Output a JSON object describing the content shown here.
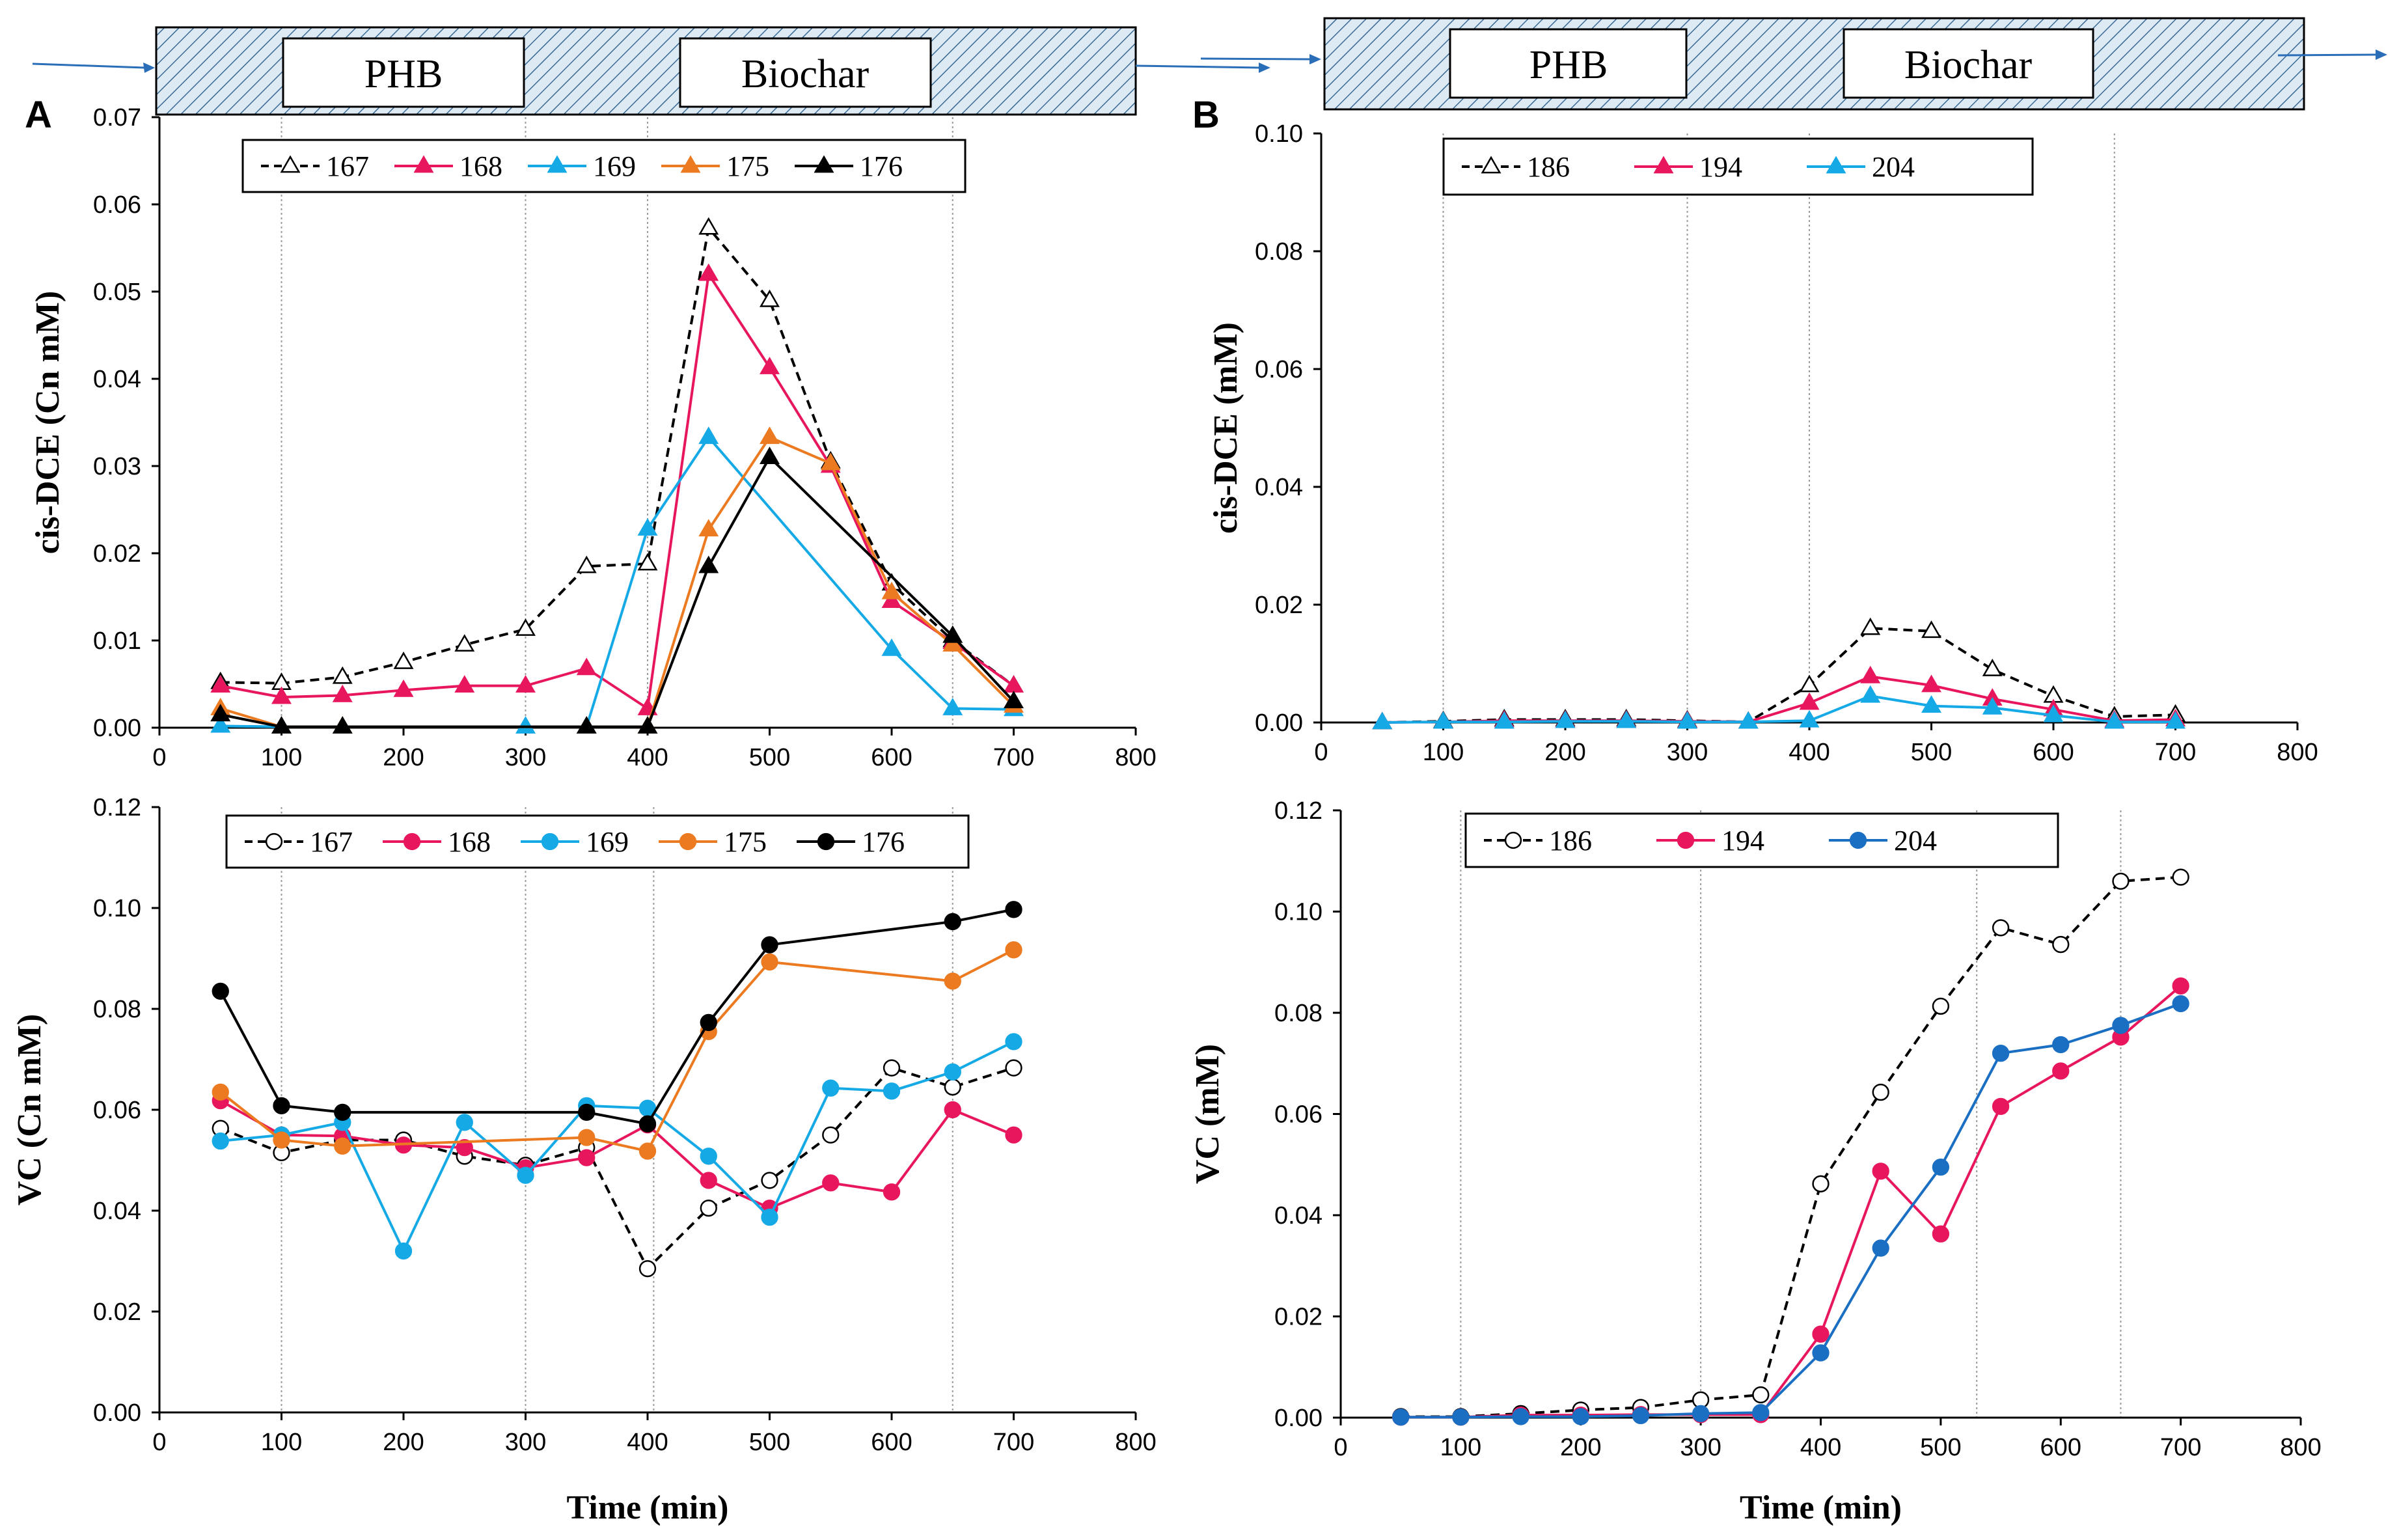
{
  "figure": {
    "panel_labels": [
      "A",
      "B"
    ],
    "banner": {
      "left_label": "PHB",
      "right_label": "Biochar"
    }
  },
  "chart_data": [
    {
      "id": "A-top",
      "type": "line",
      "ylabel": "cis-DCE (Cn mM)",
      "xlabel": "",
      "xlim": [
        0,
        800
      ],
      "ylim": [
        0,
        0.07
      ],
      "xticks": [
        0,
        100,
        200,
        300,
        400,
        500,
        600,
        700,
        800
      ],
      "yticks": [
        0,
        0.01,
        0.02,
        0.03,
        0.04,
        0.05,
        0.06,
        0.07
      ],
      "ytick_labels": [
        "0.00",
        "0.01",
        "0.02",
        "0.03",
        "0.04",
        "0.05",
        "0.06",
        "0.07"
      ],
      "vlines": [
        100,
        300,
        400,
        650
      ],
      "series": [
        {
          "name": "167",
          "color": "#000000",
          "marker": "triangle",
          "filled": false,
          "dashed": true,
          "x": [
            50,
            100,
            150,
            200,
            250,
            300,
            350,
            400,
            450,
            500,
            550,
            600,
            650,
            700
          ],
          "y": [
            0.0052,
            0.0051,
            0.0058,
            0.0075,
            0.0095,
            0.0113,
            0.0185,
            0.0188,
            0.0573,
            0.049,
            0.0305,
            0.0165,
            0.01,
            0.0048
          ]
        },
        {
          "name": "168",
          "color": "#e8175d",
          "marker": "triangle",
          "filled": true,
          "dashed": false,
          "x": [
            50,
            100,
            150,
            200,
            250,
            300,
            350,
            400,
            450,
            500,
            550,
            600,
            650,
            700
          ],
          "y": [
            0.0048,
            0.0035,
            0.0037,
            0.0043,
            0.0048,
            0.0048,
            0.0068,
            0.0022,
            0.052,
            0.0413,
            0.03,
            0.0145,
            0.0098,
            0.0048
          ]
        },
        {
          "name": "169",
          "color": "#15a9e6",
          "marker": "triangle",
          "filled": true,
          "dashed": false,
          "x": [
            50,
            100,
            300,
            350,
            400,
            450,
            600,
            650,
            700
          ],
          "y": [
            0.0002,
            0.0001,
            0.0001,
            0.0001,
            0.0228,
            0.0333,
            0.009,
            0.0022,
            0.0021
          ]
        },
        {
          "name": "175",
          "color": "#ec7a21",
          "marker": "triangle",
          "filled": true,
          "dashed": false,
          "x": [
            50,
            100,
            150,
            350,
            400,
            450,
            500,
            550,
            600,
            650,
            700
          ],
          "y": [
            0.0022,
            0.0001,
            0.0001,
            0.0001,
            0.0001,
            0.0227,
            0.0333,
            0.0303,
            0.0155,
            0.0095,
            0.0025
          ]
        },
        {
          "name": "176",
          "color": "#000000",
          "marker": "triangle",
          "filled": true,
          "dashed": false,
          "x": [
            50,
            100,
            150,
            350,
            400,
            450,
            500,
            650,
            700
          ],
          "y": [
            0.0015,
            0.0001,
            0.0001,
            0.0001,
            0.0001,
            0.0185,
            0.031,
            0.0105,
            0.003
          ]
        }
      ]
    },
    {
      "id": "A-bottom",
      "type": "line",
      "ylabel": "VC (Cn mM)",
      "xlabel": "Time (min)",
      "xlim": [
        0,
        800
      ],
      "ylim": [
        0,
        0.12
      ],
      "xticks": [
        0,
        100,
        200,
        300,
        400,
        500,
        600,
        700,
        800
      ],
      "yticks": [
        0,
        0.02,
        0.04,
        0.06,
        0.08,
        0.1,
        0.12
      ],
      "ytick_labels": [
        "0.00",
        "0.02",
        "0.04",
        "0.06",
        "0.08",
        "0.10",
        "0.12"
      ],
      "vlines": [
        100,
        300,
        405,
        650
      ],
      "series": [
        {
          "name": "167",
          "color": "#000000",
          "marker": "circle",
          "filled": false,
          "dashed": true,
          "x": [
            50,
            100,
            150,
            200,
            250,
            300,
            350,
            400,
            450,
            500,
            550,
            600,
            650,
            700
          ],
          "y": [
            0.0563,
            0.0515,
            0.054,
            0.054,
            0.0508,
            0.049,
            0.0525,
            0.0285,
            0.0405,
            0.046,
            0.055,
            0.0683,
            0.0645,
            0.0683
          ]
        },
        {
          "name": "168",
          "color": "#e8175d",
          "marker": "circle",
          "filled": true,
          "dashed": false,
          "x": [
            50,
            100,
            150,
            200,
            250,
            300,
            350,
            400,
            450,
            500,
            550,
            600,
            650,
            700
          ],
          "y": [
            0.0618,
            0.055,
            0.0548,
            0.053,
            0.0525,
            0.0485,
            0.0505,
            0.057,
            0.046,
            0.0405,
            0.0455,
            0.0437,
            0.06,
            0.055
          ]
        },
        {
          "name": "169",
          "color": "#15a9e6",
          "marker": "circle",
          "filled": true,
          "dashed": false,
          "x": [
            50,
            100,
            150,
            200,
            250,
            300,
            350,
            400,
            450,
            500,
            550,
            600,
            650,
            700
          ],
          "y": [
            0.0538,
            0.055,
            0.0575,
            0.032,
            0.0575,
            0.047,
            0.0608,
            0.0603,
            0.0508,
            0.0387,
            0.0643,
            0.0637,
            0.0675,
            0.0735
          ]
        },
        {
          "name": "175",
          "color": "#ec7a21",
          "marker": "circle",
          "filled": true,
          "dashed": false,
          "x": [
            50,
            100,
            150,
            350,
            400,
            450,
            500,
            650,
            700
          ],
          "y": [
            0.0635,
            0.054,
            0.0528,
            0.0545,
            0.0518,
            0.0755,
            0.0893,
            0.0855,
            0.0917
          ]
        },
        {
          "name": "176",
          "color": "#000000",
          "marker": "circle",
          "filled": true,
          "dashed": false,
          "x": [
            50,
            100,
            150,
            350,
            400,
            450,
            500,
            650,
            700
          ],
          "y": [
            0.0835,
            0.0608,
            0.0595,
            0.0595,
            0.0572,
            0.0773,
            0.0927,
            0.0973,
            0.0997
          ]
        }
      ]
    },
    {
      "id": "B-top",
      "type": "line",
      "ylabel": "cis-DCE  (mM)",
      "xlabel": "",
      "xlim": [
        0,
        800
      ],
      "ylim": [
        0,
        0.1
      ],
      "xticks": [
        0,
        100,
        200,
        300,
        400,
        500,
        600,
        700,
        800
      ],
      "yticks": [
        0,
        0.02,
        0.04,
        0.06,
        0.08,
        0.1
      ],
      "ytick_labels": [
        "0.00",
        "0.02",
        "0.04",
        "0.06",
        "0.08",
        "0.10"
      ],
      "vlines": [
        100,
        300,
        400,
        650
      ],
      "series": [
        {
          "name": "186",
          "color": "#000000",
          "marker": "triangle",
          "filled": false,
          "dashed": true,
          "x": [
            50,
            100,
            150,
            200,
            250,
            300,
            350,
            400,
            450,
            500,
            550,
            600,
            650,
            700
          ],
          "y": [
            0.0,
            0.0002,
            0.0005,
            0.0005,
            0.0005,
            0.0003,
            0.0001,
            0.0063,
            0.016,
            0.0155,
            0.009,
            0.0045,
            0.001,
            0.0013
          ]
        },
        {
          "name": "194",
          "color": "#e8175d",
          "marker": "triangle",
          "filled": true,
          "dashed": false,
          "x": [
            50,
            100,
            150,
            200,
            250,
            300,
            350,
            400,
            450,
            500,
            550,
            600,
            650,
            700
          ],
          "y": [
            0.0,
            0.0001,
            0.0003,
            0.0003,
            0.0003,
            0.0002,
            0.0001,
            0.0033,
            0.0078,
            0.0063,
            0.004,
            0.0022,
            0.0003,
            0.0005
          ]
        },
        {
          "name": "204",
          "color": "#15a9e6",
          "marker": "triangle",
          "filled": true,
          "dashed": false,
          "x": [
            50,
            100,
            150,
            200,
            250,
            300,
            350,
            400,
            450,
            500,
            550,
            600,
            650,
            700
          ],
          "y": [
            0.0,
            0.0001,
            0.0001,
            0.0002,
            0.0002,
            0.0001,
            0.0001,
            0.0003,
            0.0045,
            0.0028,
            0.0025,
            0.0012,
            0.0001,
            0.0001
          ]
        }
      ]
    },
    {
      "id": "B-bottom",
      "type": "line",
      "ylabel": "VC (mM)",
      "xlabel": "Time (min)",
      "xlim": [
        0,
        800
      ],
      "ylim": [
        0,
        0.12
      ],
      "xticks": [
        0,
        100,
        200,
        300,
        400,
        500,
        600,
        700,
        800
      ],
      "yticks": [
        0,
        0.02,
        0.04,
        0.06,
        0.08,
        0.1,
        0.12
      ],
      "ytick_labels": [
        "0.00",
        "0.02",
        "0.04",
        "0.06",
        "0.08",
        "0.10",
        "0.12"
      ],
      "vlines": [
        100,
        300,
        530,
        650
      ],
      "series": [
        {
          "name": "186",
          "color": "#000000",
          "marker": "circle",
          "filled": false,
          "dashed": true,
          "x": [
            50,
            100,
            150,
            200,
            250,
            300,
            350,
            400,
            450,
            500,
            550,
            600,
            650,
            700
          ],
          "y": [
            0.0002,
            0.0002,
            0.0008,
            0.0015,
            0.002,
            0.0035,
            0.0045,
            0.0462,
            0.0643,
            0.0813,
            0.0968,
            0.0935,
            0.106,
            0.1068
          ]
        },
        {
          "name": "194",
          "color": "#e8175d",
          "marker": "circle",
          "filled": true,
          "dashed": false,
          "x": [
            50,
            100,
            150,
            200,
            250,
            300,
            350,
            400,
            450,
            500,
            550,
            600,
            650,
            700
          ],
          "y": [
            0.0001,
            0.0001,
            0.0005,
            0.0005,
            0.0006,
            0.0006,
            0.0006,
            0.0165,
            0.0487,
            0.0363,
            0.0615,
            0.0685,
            0.0752,
            0.0853
          ]
        },
        {
          "name": "204",
          "color": "#1b6fc3",
          "marker": "circle",
          "filled": true,
          "dashed": false,
          "x": [
            50,
            100,
            150,
            200,
            250,
            300,
            350,
            400,
            450,
            500,
            550,
            600,
            650,
            700
          ],
          "y": [
            0.0001,
            0.0001,
            0.0002,
            0.0002,
            0.0004,
            0.0008,
            0.001,
            0.0128,
            0.0335,
            0.0495,
            0.072,
            0.0737,
            0.0775,
            0.0818
          ]
        }
      ]
    }
  ]
}
